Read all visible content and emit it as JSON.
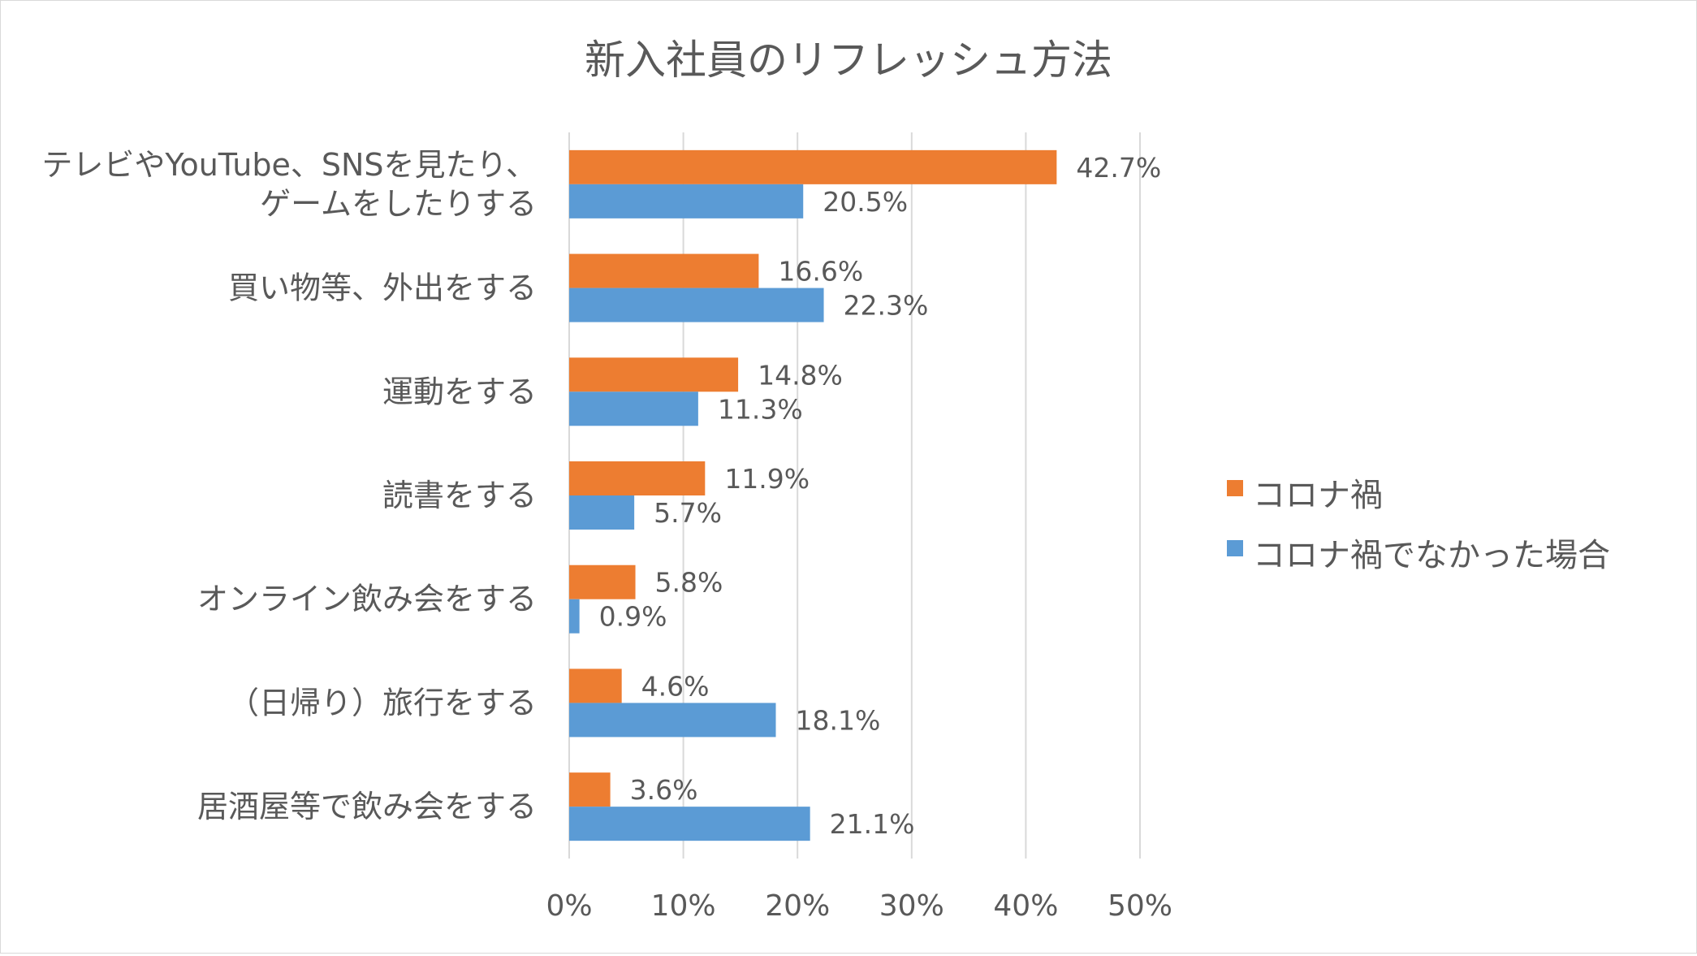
{
  "chart_data": {
    "type": "bar",
    "orientation": "horizontal",
    "title": "新入社員のリフレッシュ方法",
    "categories": [
      [
        "テレビやYouTube、SNSを見たり、",
        "ゲームをしたりする"
      ],
      [
        "買い物等、外出をする"
      ],
      [
        "運動をする"
      ],
      [
        "読書をする"
      ],
      [
        "オンライン飲み会をする"
      ],
      [
        "（日帰り）旅行をする"
      ],
      [
        "居酒屋等で飲み会をする"
      ]
    ],
    "series": [
      {
        "name": "コロナ禍",
        "color": "#ed7d31",
        "values": [
          42.7,
          16.6,
          14.8,
          11.9,
          5.8,
          4.6,
          3.6
        ],
        "labels": [
          "42.7%",
          "16.6%",
          "14.8%",
          "11.9%",
          "5.8%",
          "4.6%",
          "3.6%"
        ]
      },
      {
        "name": "コロナ禍でなかった場合",
        "color": "#5b9bd5",
        "values": [
          20.5,
          22.3,
          11.3,
          5.7,
          0.9,
          18.1,
          21.1
        ],
        "labels": [
          "20.5%",
          "22.3%",
          "11.3%",
          "5.7%",
          "0.9%",
          "18.1%",
          "21.1%"
        ]
      }
    ],
    "xlim": [
      0,
      50
    ],
    "ticks": [
      0,
      10,
      20,
      30,
      40,
      50
    ],
    "tick_labels": [
      "0%",
      "10%",
      "20%",
      "30%",
      "40%",
      "50%"
    ],
    "grid": true,
    "gridline_color": "#d9d9d9",
    "legend_position": "right"
  }
}
